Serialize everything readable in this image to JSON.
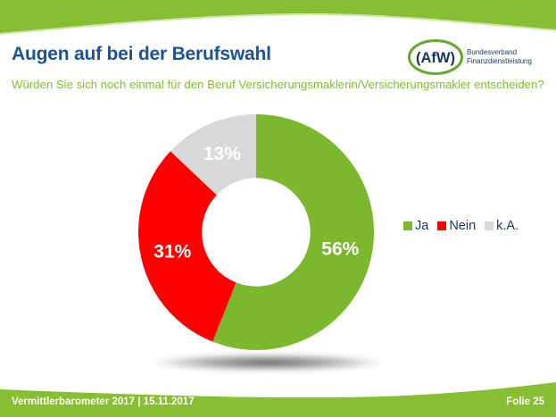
{
  "slide": {
    "title": "Augen auf bei der Berufswahl",
    "question": "Würden Sie sich noch einmal für den Beruf Versicherungsmaklerin/Versicherungsmakler entscheiden?",
    "footer_left": "Vermittlerbarometer 2017 | 15.11.2017",
    "footer_right": "Folie 25"
  },
  "logo": {
    "acronym": "(AfW)",
    "line1": "Bundesverband",
    "line2": "Finanzdienstleistung"
  },
  "colors": {
    "band_green": "#87BE32",
    "band_edge_light": "#B5D677",
    "title_blue": "#1B5394",
    "navy": "#17375E",
    "question_green": "#85BC34",
    "logo_ellipse_green": "#64A92C"
  },
  "chart_data": {
    "type": "pie",
    "subtype": "donut",
    "title": "",
    "categories": [
      "Ja",
      "Nein",
      "k.A."
    ],
    "values": [
      56,
      31,
      13
    ],
    "labels": [
      "56%",
      "31%",
      "13%"
    ],
    "colors": [
      "#7CB82E",
      "#FE0000",
      "#D9D9D9"
    ],
    "label_color": "#FFFFFF",
    "legend_position": "right",
    "legend_text_color": "#17375E",
    "start_angle_deg": 0,
    "direction": "clockwise",
    "inner_radius_ratio": 0.46
  }
}
